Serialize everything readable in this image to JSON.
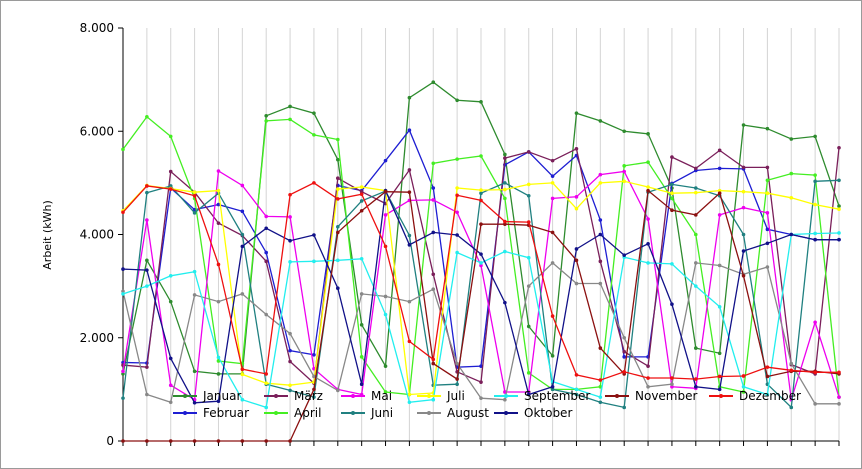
{
  "chart_data": {
    "type": "line",
    "title": "",
    "xlabel": "",
    "ylabel": "Arbeit (kWh)",
    "ylim": [
      0,
      8000
    ],
    "y_ticks": [
      "0",
      "2.000",
      "4.000",
      "6.000",
      "8.000"
    ],
    "grid": "vertical",
    "legend_position": "bottom-inside",
    "x": [
      1,
      2,
      3,
      4,
      5,
      6,
      7,
      8,
      9,
      10,
      11,
      12,
      13,
      14,
      15,
      16,
      17,
      18,
      19,
      20,
      21,
      22,
      23,
      24,
      25,
      26,
      27,
      28,
      29,
      30,
      31
    ],
    "series": [
      {
        "name": "Januar",
        "color": "#2e8b2e",
        "values": [
          1300,
          3500,
          2700,
          1350,
          1300,
          1300,
          6300,
          6480,
          6350,
          5450,
          2250,
          1450,
          6650,
          6950,
          6600,
          6570,
          5550,
          2220,
          1650,
          6350,
          6200,
          6000,
          5950,
          4900,
          1800,
          1700,
          6120,
          6050,
          5850,
          5900,
          4550
        ]
      },
      {
        "name": "Februar",
        "color": "#1e1ed2",
        "values": [
          1520,
          1510,
          4900,
          4480,
          4580,
          4450,
          3650,
          1750,
          1670,
          4950,
          4850,
          5430,
          6020,
          4900,
          1430,
          1450,
          5350,
          5600,
          5130,
          5530,
          4280,
          1630,
          1630,
          4990,
          5240,
          5280,
          5270,
          4100,
          4000,
          3900,
          3900
        ]
      },
      {
        "name": "März",
        "color": "#7a1f5a",
        "values": [
          1470,
          1430,
          5220,
          4820,
          4220,
          3980,
          3480,
          1540,
          1120,
          5090,
          4830,
          4600,
          5250,
          3230,
          1340,
          1140,
          5480,
          5600,
          5430,
          5660,
          3480,
          1730,
          1450,
          5500,
          5280,
          5630,
          5300,
          5300,
          1480,
          1300,
          5680
        ]
      },
      {
        "name": "April",
        "color": "#44ee22",
        "values": [
          5650,
          6280,
          5900,
          4700,
          1550,
          1500,
          6200,
          6230,
          5930,
          5840,
          1630,
          950,
          900,
          5380,
          5460,
          5520,
          4700,
          1320,
          1000,
          1000,
          1050,
          5330,
          5400,
          4700,
          4000,
          1050,
          950,
          5050,
          5180,
          5150,
          850
        ]
      },
      {
        "name": "Mai",
        "color": "#ee00ee",
        "values": [
          1350,
          4280,
          1080,
          800,
          5230,
          4950,
          4350,
          4340,
          1400,
          1000,
          900,
          4380,
          4660,
          4670,
          4430,
          3400,
          950,
          950,
          4700,
          4730,
          5160,
          5220,
          4300,
          1050,
          1020,
          4380,
          4520,
          4420,
          800,
          2300,
          850
        ]
      },
      {
        "name": "Juni",
        "color": "#208080",
        "values": [
          830,
          4810,
          4940,
          4420,
          4800,
          4000,
          1100,
          980,
          850,
          4150,
          4650,
          4840,
          3980,
          1080,
          1100,
          4800,
          5000,
          4750,
          1000,
          900,
          750,
          650,
          4820,
          4970,
          4900,
          4750,
          4000,
          1100,
          650,
          5030,
          5050
        ]
      },
      {
        "name": "Juli",
        "color": "#ffff00",
        "values": [
          4460,
          4950,
          4890,
          4820,
          4850,
          1290,
          1120,
          1080,
          1140,
          4880,
          4920,
          4850,
          900,
          930,
          4900,
          4860,
          4870,
          4970,
          5000,
          4500,
          5000,
          5030,
          4920,
          4800,
          4810,
          4850,
          4830,
          4800,
          4710,
          4580,
          4490
        ]
      },
      {
        "name": "August",
        "color": "#888888",
        "values": [
          2900,
          900,
          750,
          2830,
          2700,
          2850,
          2450,
          2080,
          1250,
          980,
          2850,
          2800,
          2700,
          2940,
          1500,
          830,
          800,
          3000,
          3450,
          3050,
          3050,
          2000,
          1050,
          1100,
          3450,
          3400,
          3230,
          3370,
          1500,
          720,
          720
        ]
      },
      {
        "name": "September",
        "color": "#22eeee",
        "values": [
          2850,
          3000,
          3200,
          3280,
          1620,
          800,
          650,
          3470,
          3480,
          3500,
          3530,
          2450,
          750,
          800,
          3650,
          3450,
          3670,
          3550,
          1150,
          1000,
          850,
          3560,
          3450,
          3430,
          3000,
          2600,
          1050,
          900,
          4000,
          4020,
          4030
        ]
      },
      {
        "name": "Oktober",
        "color": "#111188",
        "values": [
          3330,
          3310,
          1600,
          740,
          770,
          3770,
          4120,
          3880,
          3990,
          2960,
          1100,
          4850,
          3800,
          4040,
          3990,
          3620,
          2680,
          900,
          1050,
          3720,
          4000,
          3600,
          3820,
          2650,
          1050,
          1000,
          3680,
          3830,
          4000,
          3900,
          3900
        ]
      },
      {
        "name": "November",
        "color": "#8b1010",
        "values": [
          0,
          0,
          0,
          0,
          0,
          0,
          0,
          0,
          1000,
          4040,
          4460,
          4830,
          4820,
          1500,
          1200,
          4200,
          4200,
          4180,
          4040,
          3500,
          1800,
          1300,
          4850,
          4470,
          4380,
          4800,
          3200,
          1250,
          1350,
          1350,
          1300
        ]
      },
      {
        "name": "Dezember",
        "color": "#ee1010",
        "values": [
          4430,
          4940,
          4880,
          4750,
          3420,
          1390,
          1300,
          4770,
          5000,
          4690,
          4780,
          3770,
          1930,
          1580,
          4760,
          4660,
          4250,
          4240,
          2420,
          1280,
          1180,
          1340,
          1220,
          1220,
          1200,
          1250,
          1260,
          1430,
          1370,
          1330,
          1330
        ]
      }
    ]
  }
}
